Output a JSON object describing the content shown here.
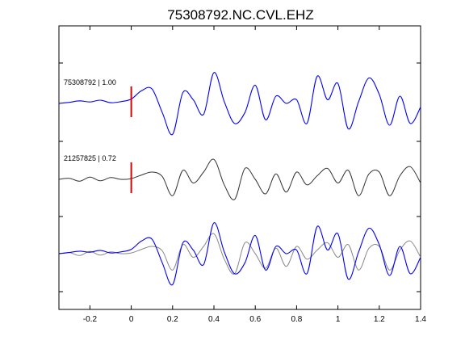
{
  "chart_data": {
    "type": "line",
    "title": "75308792.NC.CVL.EHZ",
    "xlabel": "",
    "ylabel": "",
    "xlim": [
      -0.35,
      1.4
    ],
    "xticks": [
      -0.2,
      0,
      0.2,
      0.4,
      0.6,
      0.8,
      1,
      1.2,
      1.4
    ],
    "xtick_labels": [
      "-0.2",
      "0",
      "0.2",
      "0.4",
      "0.6",
      "0.8",
      "1",
      "1.2",
      "1.4"
    ],
    "grid": false,
    "legend": "none",
    "pick_marker": {
      "x": 0,
      "color": "#e00000"
    },
    "colors": {
      "template": "#0000ff",
      "match": "#333333",
      "overlay_match": "#888888"
    },
    "traces": [
      {
        "label": "75308792 | 1.00",
        "color": "#0000ff",
        "x": [
          -0.35,
          -0.3,
          -0.25,
          -0.2,
          -0.15,
          -0.1,
          -0.05,
          0,
          0.05,
          0.1,
          0.15,
          0.2,
          0.25,
          0.3,
          0.35,
          0.4,
          0.45,
          0.5,
          0.55,
          0.6,
          0.65,
          0.7,
          0.75,
          0.8,
          0.85,
          0.9,
          0.95,
          1,
          1.05,
          1.1,
          1.15,
          1.2,
          1.25,
          1.3,
          1.35,
          1.4
        ],
        "values": [
          0.0,
          0.03,
          0.07,
          0.04,
          0.09,
          0.02,
          0.05,
          0.12,
          0.35,
          0.4,
          -0.25,
          -0.85,
          0.3,
          0.1,
          -0.3,
          0.85,
          0.05,
          -0.55,
          -0.25,
          0.5,
          -0.45,
          0.2,
          0.0,
          0.1,
          -0.55,
          0.75,
          0.1,
          0.55,
          -0.7,
          0.05,
          0.7,
          0.25,
          -0.6,
          0.2,
          -0.55,
          -0.1
        ]
      },
      {
        "label": "21257825 | 0.72",
        "color": "#333333",
        "x": [
          -0.35,
          -0.3,
          -0.25,
          -0.2,
          -0.15,
          -0.1,
          -0.05,
          0,
          0.05,
          0.1,
          0.15,
          0.2,
          0.25,
          0.3,
          0.35,
          0.4,
          0.45,
          0.5,
          0.55,
          0.6,
          0.65,
          0.7,
          0.75,
          0.8,
          0.85,
          0.9,
          0.95,
          1,
          1.05,
          1.1,
          1.15,
          1.2,
          1.25,
          1.3,
          1.35,
          1.4
        ],
        "values": [
          0.0,
          0.03,
          -0.05,
          0.06,
          -0.04,
          0.05,
          0.0,
          0.02,
          0.12,
          0.2,
          0.08,
          -0.45,
          0.25,
          -0.1,
          0.2,
          0.55,
          -0.15,
          -0.55,
          0.3,
          0.0,
          -0.4,
          0.15,
          -0.35,
          0.2,
          -0.15,
          0.1,
          0.3,
          -0.1,
          0.25,
          -0.45,
          0.15,
          0.2,
          -0.45,
          0.1,
          0.35,
          -0.1
        ]
      }
    ]
  }
}
